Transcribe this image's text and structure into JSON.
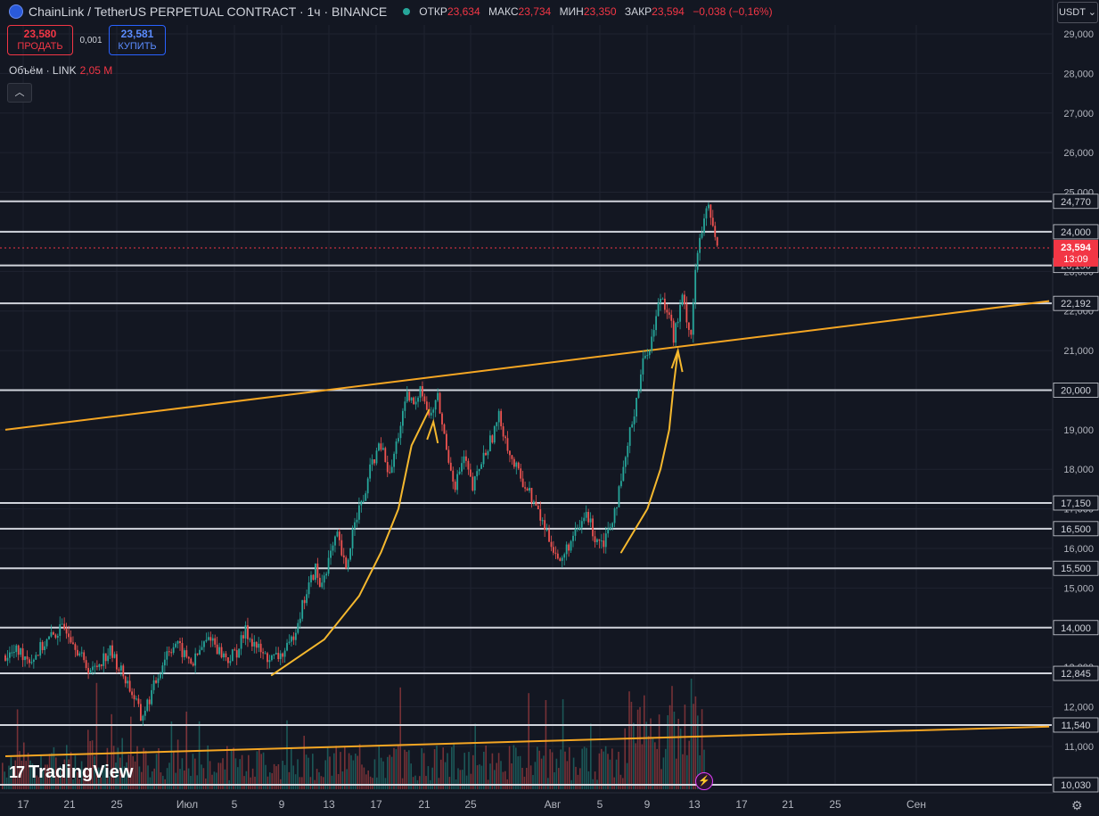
{
  "header": {
    "symbol": "ChainLink / TetherUS PERPETUAL CONTRACT · 1ч · BINANCE",
    "open_label": "ОТКР",
    "open": "23,634",
    "high_label": "МАКС",
    "high": "23,734",
    "low_label": "МИН",
    "low": "23,350",
    "close_label": "ЗАКР",
    "close": "23,594",
    "change": "−0,038 (−0,16%)"
  },
  "trade": {
    "sell_price": "23,580",
    "sell_label": "ПРОДАТЬ",
    "spread": "0,001",
    "buy_price": "23,581",
    "buy_label": "КУПИТЬ"
  },
  "volume_legend": {
    "label": "Объём · LINK",
    "value": "2,05 M"
  },
  "currency_button": "USDT",
  "brand": "TradingView",
  "colors": {
    "background": "#131722",
    "up": "#26a69a",
    "down": "#ef5350",
    "trend": "#f5a623",
    "level": "#d1d4dc",
    "price_tag": "#f23645"
  },
  "chart_data": {
    "type": "candlestick",
    "title": "ChainLink / TetherUS PERPETUAL CONTRACT · 1ч · BINANCE",
    "ylim": [
      10.03,
      29.3
    ],
    "y_ticks": [
      "10,030",
      "11,000",
      "12,000",
      "13,000",
      "14,000",
      "15,000",
      "16,000",
      "17,000",
      "18,000",
      "19,000",
      "20,000",
      "21,000",
      "22,000",
      "23,000",
      "24,000",
      "25,000",
      "26,000",
      "27,000",
      "28,000",
      "29,000"
    ],
    "x_ticks": [
      "17",
      "21",
      "25",
      "Июл",
      "5",
      "9",
      "13",
      "17",
      "21",
      "25",
      "Авг",
      "5",
      "9",
      "13",
      "17",
      "21",
      "25",
      "Сен"
    ],
    "levels": [
      24.77,
      24.0,
      23.15,
      22.192,
      20.0,
      17.15,
      16.5,
      15.5,
      14.0,
      12.845,
      11.54,
      10.03
    ],
    "level_labels": [
      "24,770",
      "24,000",
      "23,150",
      "22,192",
      "20,000",
      "17,150",
      "16,500",
      "15,500",
      "14,000",
      "12,845",
      "11,540",
      "10,030"
    ],
    "current_price": {
      "value": 23.594,
      "label": "23,594",
      "timer": "13:09"
    },
    "price_path": [
      [
        0,
        13.3
      ],
      [
        3,
        13.4
      ],
      [
        6,
        13.2
      ],
      [
        9,
        13.6
      ],
      [
        12,
        13.9
      ],
      [
        14,
        14.0
      ],
      [
        16,
        13.6
      ],
      [
        18,
        13.1
      ],
      [
        20,
        12.9
      ],
      [
        22,
        13.2
      ],
      [
        24,
        13.4
      ],
      [
        26,
        13.0
      ],
      [
        28,
        12.6
      ],
      [
        30,
        12.1
      ],
      [
        31,
        11.7
      ],
      [
        33,
        12.2
      ],
      [
        35,
        12.8
      ],
      [
        37,
        13.4
      ],
      [
        39,
        13.6
      ],
      [
        41,
        13.3
      ],
      [
        43,
        13.1
      ],
      [
        45,
        13.5
      ],
      [
        47,
        13.8
      ],
      [
        49,
        13.4
      ],
      [
        51,
        13.2
      ],
      [
        53,
        13.4
      ],
      [
        55,
        13.9
      ],
      [
        57,
        13.6
      ],
      [
        59,
        13.3
      ],
      [
        61,
        13.2
      ],
      [
        63,
        13.3
      ],
      [
        65,
        13.5
      ],
      [
        67,
        14.2
      ],
      [
        69,
        14.9
      ],
      [
        71,
        15.5
      ],
      [
        72,
        15.0
      ],
      [
        74,
        15.7
      ],
      [
        76,
        16.3
      ],
      [
        78,
        15.4
      ],
      [
        80,
        16.8
      ],
      [
        82,
        17.2
      ],
      [
        84,
        18.2
      ],
      [
        86,
        18.6
      ],
      [
        88,
        17.8
      ],
      [
        90,
        18.9
      ],
      [
        92,
        19.8
      ],
      [
        94,
        19.6
      ],
      [
        95,
        20.2
      ],
      [
        97,
        19.3
      ],
      [
        99,
        19.8
      ],
      [
        101,
        18.5
      ],
      [
        103,
        17.6
      ],
      [
        105,
        18.3
      ],
      [
        107,
        17.5
      ],
      [
        109,
        18.2
      ],
      [
        111,
        18.7
      ],
      [
        113,
        19.3
      ],
      [
        114,
        19.0
      ],
      [
        116,
        18.2
      ],
      [
        118,
        17.8
      ],
      [
        120,
        17.4
      ],
      [
        122,
        16.9
      ],
      [
        124,
        16.4
      ],
      [
        126,
        15.9
      ],
      [
        127,
        15.6
      ],
      [
        129,
        16.1
      ],
      [
        131,
        16.4
      ],
      [
        133,
        16.9
      ],
      [
        135,
        16.3
      ],
      [
        137,
        16.2
      ],
      [
        139,
        16.8
      ],
      [
        141,
        17.6
      ],
      [
        143,
        18.9
      ],
      [
        144,
        19.5
      ],
      [
        146,
        20.7
      ],
      [
        148,
        21.3
      ],
      [
        150,
        22.4
      ],
      [
        152,
        22.0
      ],
      [
        153,
        21.3
      ],
      [
        155,
        22.3
      ],
      [
        157,
        21.4
      ],
      [
        158,
        23.1
      ],
      [
        160,
        24.3
      ],
      [
        161,
        24.6
      ],
      [
        163,
        23.6
      ]
    ],
    "trendlines": [
      {
        "from": [
          0,
          19.0
        ],
        "to": [
          239,
          22.25
        ]
      },
      {
        "from": [
          0,
          10.75
        ],
        "to": [
          239,
          11.5
        ]
      }
    ],
    "arrows": [
      {
        "points": [
          [
            61,
            12.8
          ],
          [
            73,
            13.7
          ],
          [
            81,
            14.8
          ],
          [
            86,
            15.9
          ],
          [
            90,
            17.0
          ],
          [
            93,
            18.6
          ],
          [
            97,
            19.5
          ]
        ],
        "head": [
          98,
          19.2
        ]
      },
      {
        "points": [
          [
            141,
            15.9
          ],
          [
            147,
            17.0
          ],
          [
            150,
            18.0
          ],
          [
            152,
            19.0
          ],
          [
            153,
            20.1
          ],
          [
            154,
            21.0
          ]
        ],
        "head": [
          154,
          21.0
        ]
      }
    ]
  }
}
